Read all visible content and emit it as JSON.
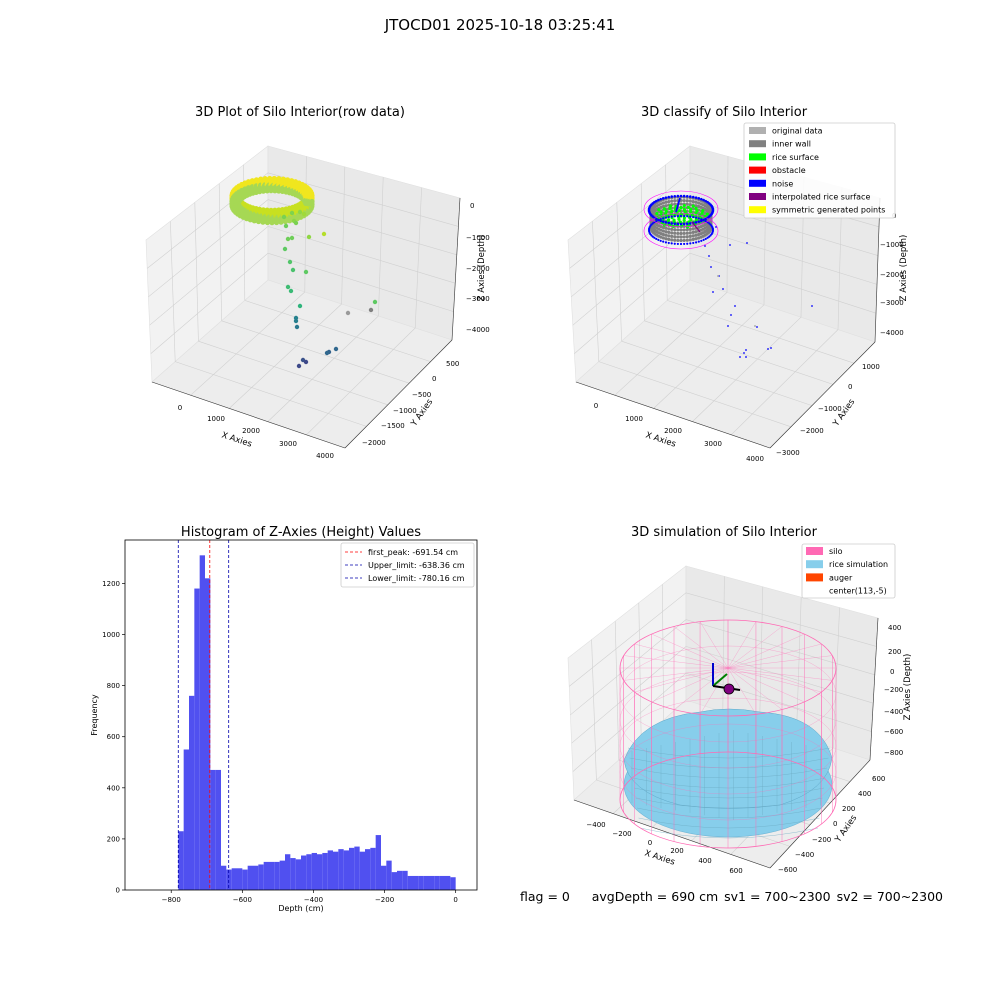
{
  "figure": {
    "suptitle": "JTOCD01 2025-10-18 03:25:41"
  },
  "status": {
    "flag": "flag = 0",
    "avg_depth": "avgDepth = 690 cm",
    "sv1": "sv1 = 700~2300",
    "sv2": "sv2 = 700~2300"
  },
  "colors": {
    "histogram_bar": "#5050f0",
    "first_peak_line": "#ff0000",
    "limit_lines": "#0000aa",
    "silo": "#ff69b4",
    "rice_simulation": "#87ceeb",
    "auger": "#ff4500",
    "original_data": "#b0b0b0",
    "inner_wall": "#808080",
    "rice_surface": "#00ff00",
    "obstacle": "#ff0000",
    "noise": "#0000ff",
    "interpolated_rice_surface": "#800080",
    "symmetric_generated_points": "#ffff00"
  },
  "chart_data": [
    {
      "type": "scatter",
      "projection": "3d",
      "title": "3D Plot of Silo Interior(row data)",
      "xlabel": "X Axies",
      "ylabel": "Y Axies",
      "zlabel": "Z Axies (Depth)",
      "x_ticks": [
        "0",
        "1000",
        "2000",
        "3000",
        "4000"
      ],
      "y_ticks": [
        "500",
        "0",
        "−500",
        "−1000",
        "−1500",
        "−2000"
      ],
      "z_ticks": [
        "0",
        "−1000",
        "−2000",
        "−3000",
        "−4000"
      ],
      "colormap": "viridis"
    },
    {
      "type": "scatter",
      "projection": "3d",
      "title": "3D classify of Silo Interior",
      "xlabel": "X Axies",
      "ylabel": "Y Axies",
      "zlabel": "Z Axies (Depth)",
      "x_ticks": [
        "0",
        "1000",
        "2000",
        "3000",
        "4000"
      ],
      "y_ticks": [
        "1000",
        "0",
        "−1000",
        "−2000",
        "−3000"
      ],
      "z_ticks": [
        "0",
        "−1000",
        "−2000",
        "−3000",
        "−4000"
      ],
      "legend": {
        "position": "top-right",
        "entries": [
          {
            "label": "original data",
            "color": "#b0b0b0"
          },
          {
            "label": "inner wall",
            "color": "#808080"
          },
          {
            "label": "rice surface",
            "color": "#00ff00"
          },
          {
            "label": "obstacle",
            "color": "#ff0000"
          },
          {
            "label": "noise",
            "color": "#0000ff"
          },
          {
            "label": "interpolated rice surface",
            "color": "#800080"
          },
          {
            "label": "symmetric generated points",
            "color": "#ffff00"
          }
        ]
      }
    },
    {
      "type": "bar",
      "title": "Histogram of Z-Axies (Height) Values",
      "xlabel": "Depth (cm)",
      "ylabel": "Frequency",
      "xlim": [
        -930,
        60
      ],
      "ylim": [
        0,
        1370
      ],
      "x_ticks": [
        -800,
        -600,
        -400,
        -200,
        0
      ],
      "x_tick_labels": [
        "−800",
        "−600",
        "−400",
        "−200",
        "0"
      ],
      "y_ticks": [
        0,
        200,
        400,
        600,
        800,
        1000,
        1200
      ],
      "y_tick_labels": [
        "0",
        "200",
        "400",
        "600",
        "800",
        "1000",
        "1200"
      ],
      "bin_edges": [
        -780,
        -765,
        -750,
        -735,
        -720,
        -705,
        -690,
        -675,
        -660,
        -645,
        -630,
        -615,
        -600,
        -585,
        -570,
        -555,
        -540,
        -525,
        -510,
        -495,
        -480,
        -465,
        -450,
        -435,
        -420,
        -405,
        -390,
        -375,
        -360,
        -345,
        -330,
        -315,
        -300,
        -285,
        -270,
        -255,
        -240,
        -225,
        -210,
        -195,
        -180,
        -165,
        -150,
        -135,
        -120,
        -105,
        -90,
        -75,
        -60,
        -45,
        -30,
        -15,
        0
      ],
      "values": [
        230,
        550,
        760,
        1180,
        1310,
        1220,
        470,
        470,
        95,
        80,
        85,
        85,
        80,
        95,
        95,
        100,
        110,
        110,
        110,
        115,
        140,
        125,
        120,
        135,
        140,
        145,
        140,
        145,
        155,
        150,
        160,
        155,
        165,
        170,
        150,
        160,
        165,
        215,
        95,
        115,
        70,
        75,
        75,
        55,
        55,
        55,
        55,
        55,
        55,
        55,
        55,
        50
      ],
      "vlines": [
        {
          "label": "first_peak: -691.54 cm",
          "x": -691.54,
          "color": "#ff0000",
          "style": "dashed"
        },
        {
          "label": "Upper_limit: -638.36 cm",
          "x": -638.36,
          "color": "#0000aa",
          "style": "dashed"
        },
        {
          "label": "Lower_limit: -780.16 cm",
          "x": -780.16,
          "color": "#0000aa",
          "style": "dashed"
        }
      ],
      "legend": {
        "position": "top-right"
      }
    },
    {
      "type": "surface",
      "projection": "3d",
      "title": "3D simulation of Silo Interior",
      "xlabel": "X Axies",
      "ylabel": "Y Axies",
      "zlabel": "Z Axies (Depth)",
      "x_ticks": [
        "−400",
        "−200",
        "0",
        "200",
        "400",
        "600"
      ],
      "y_ticks": [
        "600",
        "400",
        "200",
        "0",
        "−200",
        "−400",
        "−600"
      ],
      "z_ticks": [
        "400",
        "200",
        "0",
        "−200",
        "−400",
        "−600",
        "−800"
      ],
      "legend": {
        "position": "top-right",
        "entries": [
          {
            "label": "silo",
            "color": "#ff69b4"
          },
          {
            "label": "rice simulation",
            "color": "#87ceeb"
          },
          {
            "label": "auger",
            "color": "#ff4500"
          },
          {
            "label": "center(113,-5)",
            "color": "#ffffff"
          }
        ]
      }
    }
  ]
}
